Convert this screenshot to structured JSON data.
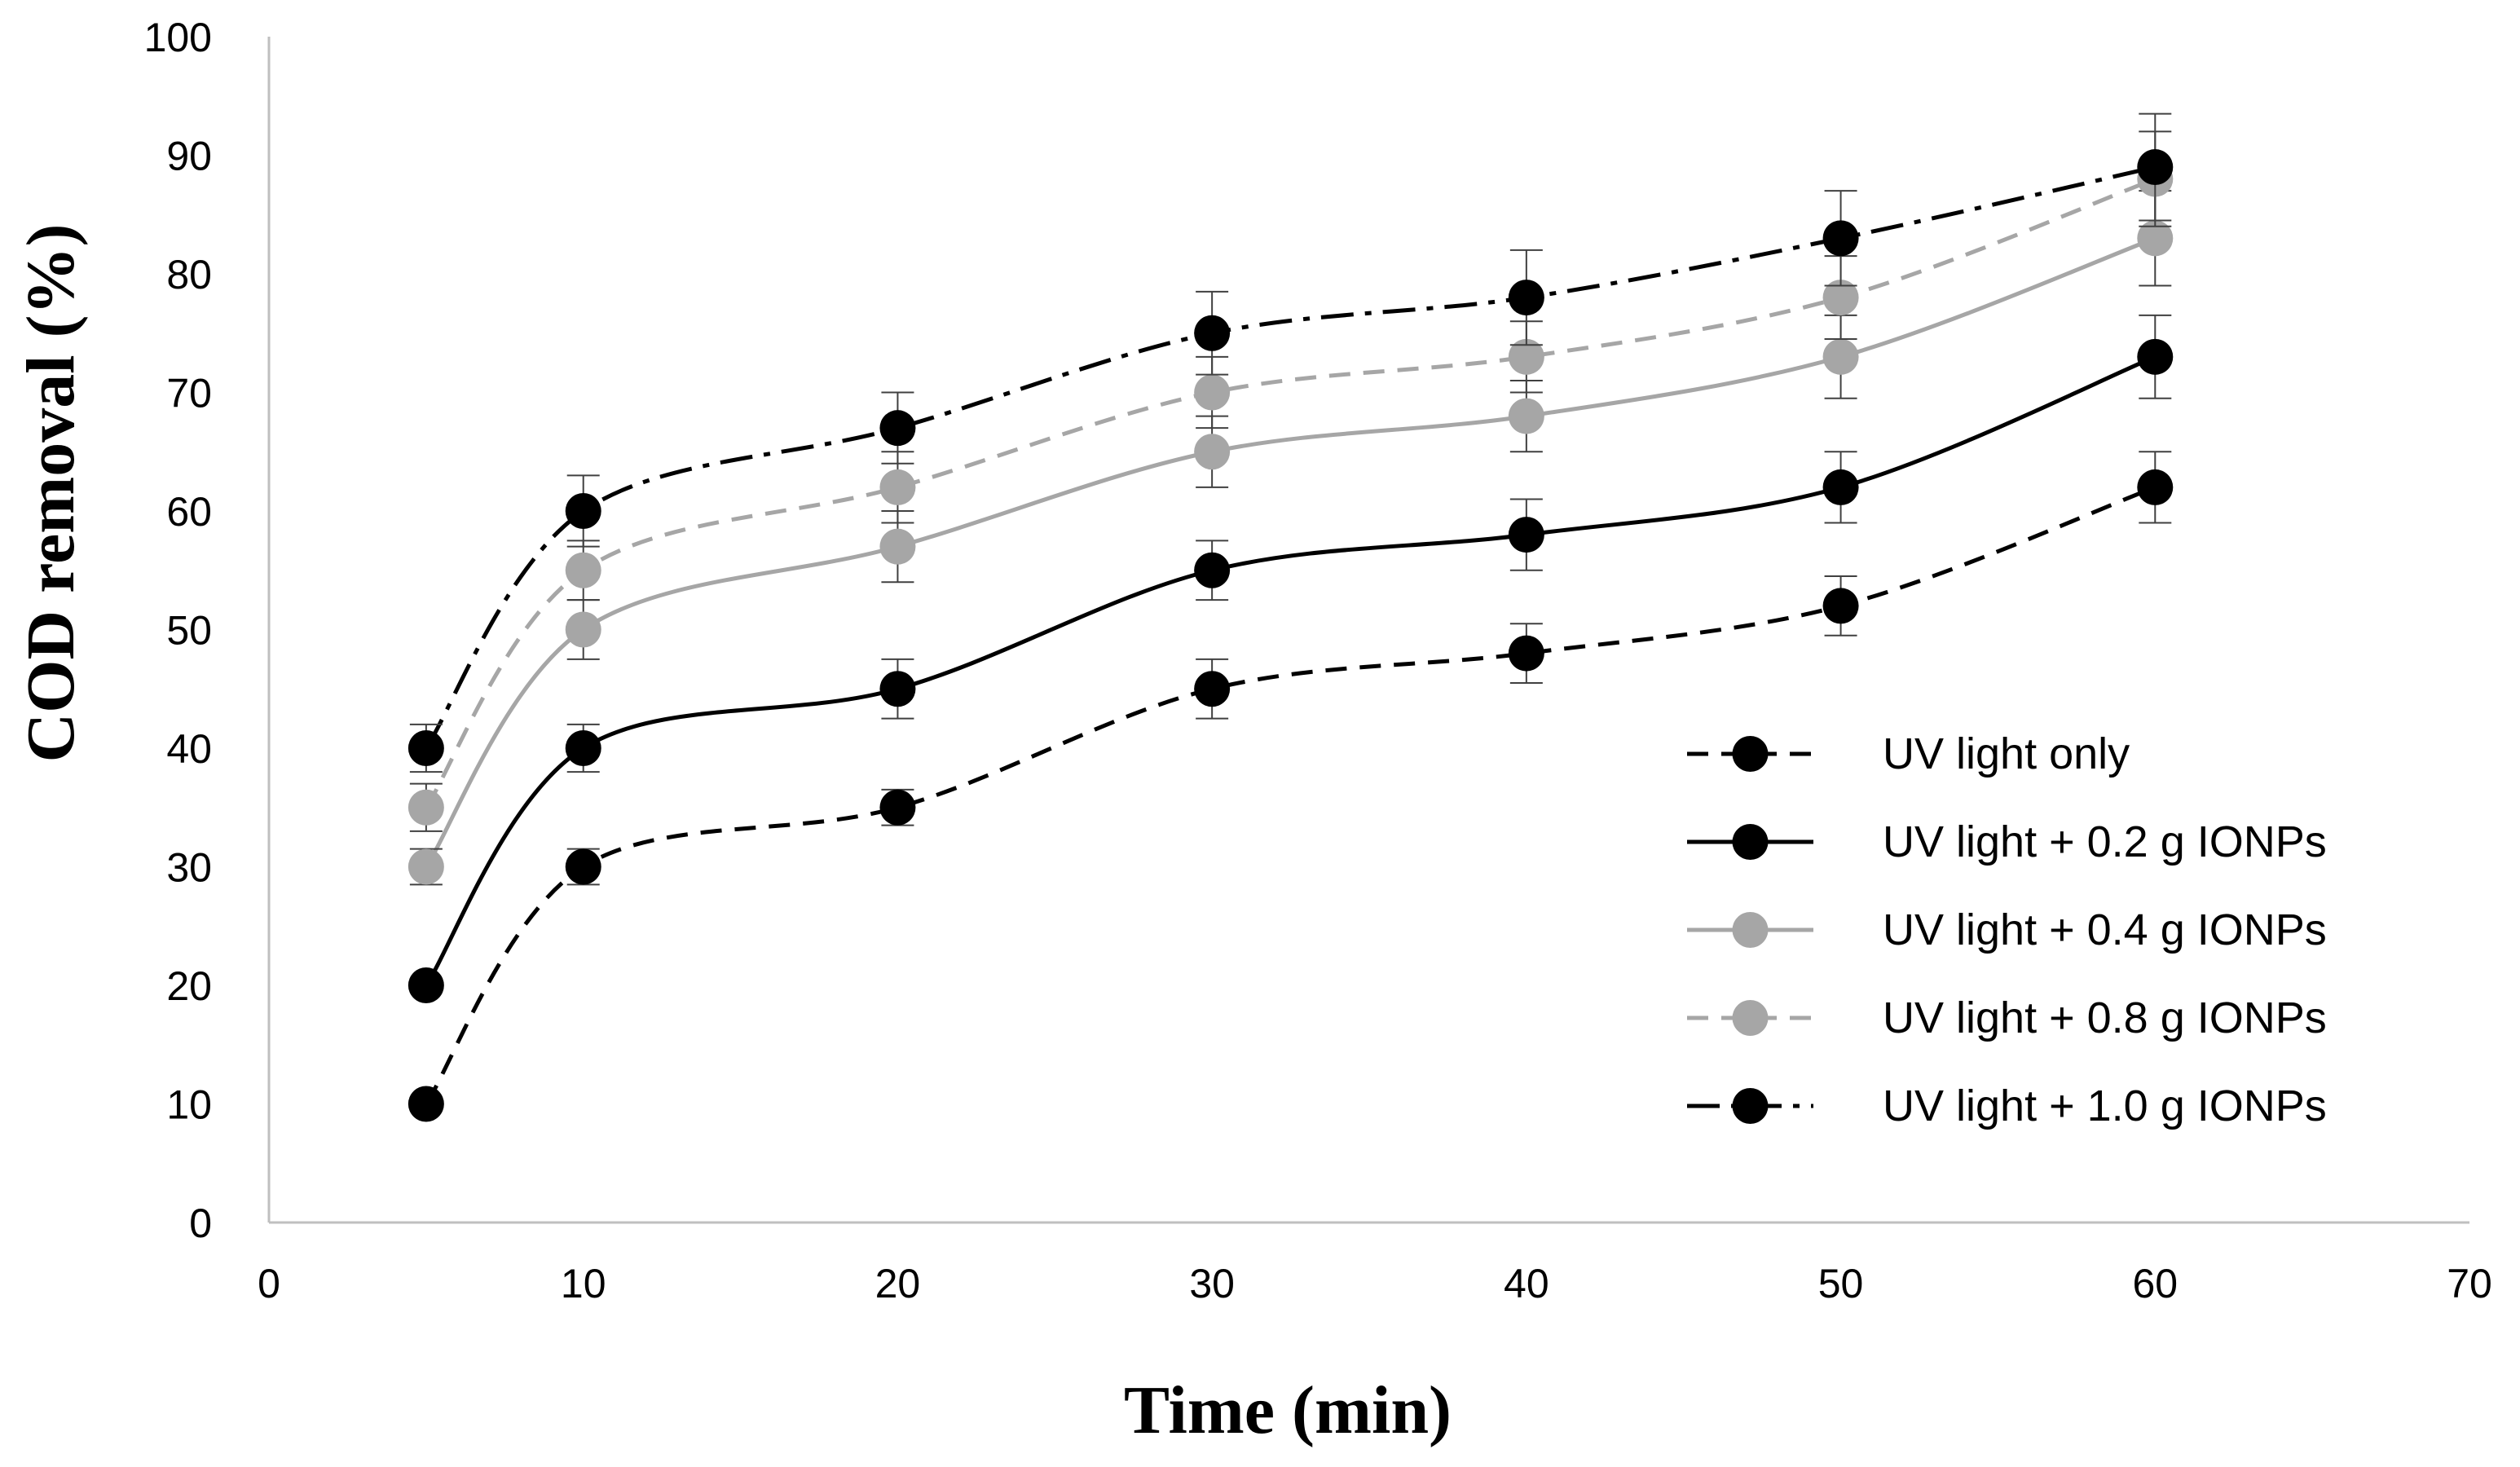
{
  "chart_data": {
    "type": "line",
    "title": "",
    "xlabel": "Time (min)",
    "ylabel": "COD removal (%)",
    "xlim": [
      0,
      70
    ],
    "ylim": [
      0,
      100
    ],
    "xticks": [
      0,
      10,
      20,
      30,
      40,
      50,
      60,
      70
    ],
    "yticks": [
      0,
      10,
      20,
      30,
      40,
      50,
      60,
      70,
      80,
      90,
      100
    ],
    "grid": false,
    "legend_position": "right",
    "x": [
      5,
      10,
      20,
      30,
      40,
      50,
      60
    ],
    "series": [
      {
        "name": "UV light only",
        "values": [
          10,
          30,
          35,
          45,
          48,
          52,
          62
        ],
        "errors": [
          0,
          1.5,
          1.5,
          2.5,
          2.5,
          2.5,
          3
        ],
        "color": "#000000",
        "dash": "dashed"
      },
      {
        "name": "UV light + 0.2 g IONPs",
        "values": [
          20,
          40,
          45,
          55,
          58,
          62,
          73
        ],
        "errors": [
          0,
          2,
          2.5,
          2.5,
          3,
          3,
          3.5
        ],
        "color": "#000000",
        "dash": "solid"
      },
      {
        "name": "UV light + 0.4 g IONPs",
        "values": [
          30,
          50,
          57,
          65,
          68,
          73,
          83
        ],
        "errors": [
          1.5,
          2.5,
          3,
          3,
          3,
          3.5,
          4
        ],
        "color": "#a6a6a6",
        "dash": "solid"
      },
      {
        "name": "UV light + 0.8 g IONPs",
        "values": [
          35,
          55,
          62,
          70,
          73,
          78,
          88
        ],
        "errors": [
          2,
          2.5,
          3,
          3,
          3,
          3.5,
          4
        ],
        "color": "#a6a6a6",
        "dash": "dashed"
      },
      {
        "name": "UV light + 1.0 g IONPs",
        "values": [
          40,
          60,
          67,
          75,
          78,
          83,
          89
        ],
        "errors": [
          2,
          3,
          3,
          3.5,
          4,
          4,
          4.5
        ],
        "color": "#000000",
        "dash": "dashdot"
      }
    ]
  }
}
